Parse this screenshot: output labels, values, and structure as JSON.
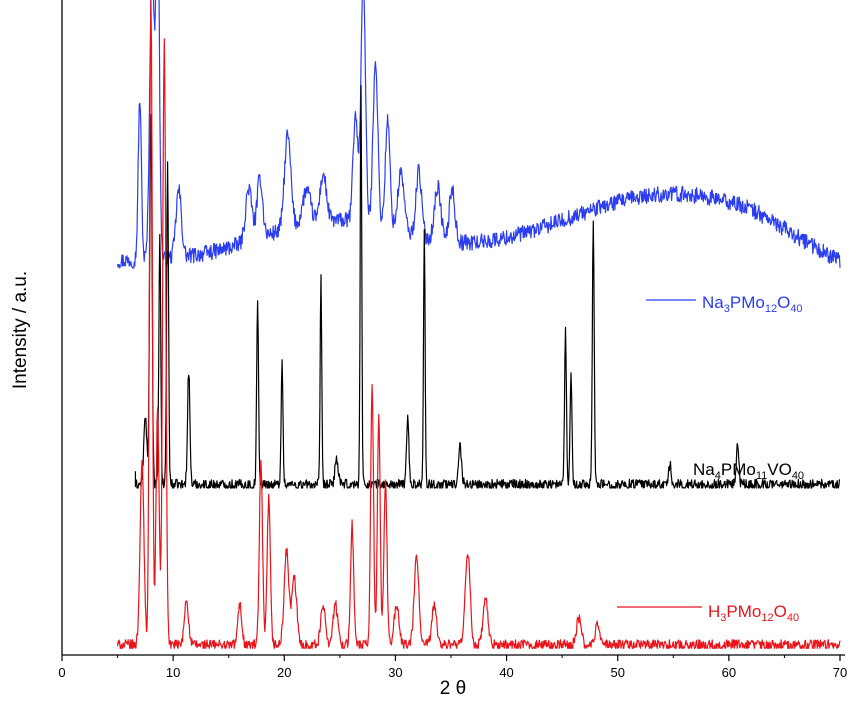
{
  "chart_data": {
    "type": "line",
    "title": "",
    "xlabel": "2 θ",
    "ylabel": "Intensity / a.u.",
    "xlim": [
      0,
      70
    ],
    "xticks": [
      "0",
      "10",
      "20",
      "30",
      "40",
      "50",
      "60",
      "70"
    ],
    "y_tick_labels": false,
    "grid": false,
    "legend_placement": "inline right, next to each trace",
    "series": [
      {
        "key": "blue",
        "name_parts": [
          [
            "Na",
            "n"
          ],
          [
            "3",
            "s"
          ],
          [
            "PMo",
            "n"
          ],
          [
            "12",
            "s"
          ],
          [
            "O",
            "n"
          ],
          [
            "40",
            "s"
          ]
        ],
        "color": "#2b3df0",
        "offset": 0.55,
        "baseline": 0.025,
        "noise": 0.012,
        "noise_start": 0.02,
        "humps": [
          [
            24.5,
            9,
            0.06
          ],
          [
            55,
            14,
            0.1
          ]
        ],
        "peaks": [
          [
            7.0,
            0.2,
            0.24
          ],
          [
            8.1,
            0.28,
            0.45
          ],
          [
            8.6,
            0.22,
            0.55
          ],
          [
            10.5,
            0.35,
            0.1
          ],
          [
            16.8,
            0.4,
            0.08
          ],
          [
            17.8,
            0.35,
            0.09
          ],
          [
            20.3,
            0.4,
            0.14
          ],
          [
            22.0,
            0.5,
            0.05
          ],
          [
            23.5,
            0.4,
            0.07
          ],
          [
            26.4,
            0.3,
            0.16
          ],
          [
            27.1,
            0.28,
            0.37
          ],
          [
            28.2,
            0.3,
            0.25
          ],
          [
            29.3,
            0.3,
            0.16
          ],
          [
            30.5,
            0.4,
            0.09
          ],
          [
            32.1,
            0.35,
            0.1
          ],
          [
            33.8,
            0.4,
            0.08
          ],
          [
            35.1,
            0.35,
            0.08
          ]
        ]
      },
      {
        "key": "black",
        "name_parts": [
          [
            "Na",
            "n"
          ],
          [
            "4",
            "s"
          ],
          [
            "PMo",
            "n"
          ],
          [
            "11",
            "s"
          ],
          [
            "VO",
            "n"
          ],
          [
            "40",
            "s"
          ]
        ],
        "color": "#000000",
        "offset": 0.24,
        "baseline": 0.0,
        "noise": 0.008,
        "noise_start": 6.9,
        "humps": [],
        "peaks": [
          [
            7.5,
            0.2,
            0.1
          ],
          [
            8.0,
            0.15,
            0.56
          ],
          [
            8.8,
            0.12,
            0.37
          ],
          [
            9.5,
            0.12,
            0.48
          ],
          [
            11.4,
            0.15,
            0.17
          ],
          [
            17.6,
            0.12,
            0.27
          ],
          [
            19.8,
            0.12,
            0.18
          ],
          [
            23.3,
            0.1,
            0.31
          ],
          [
            24.7,
            0.2,
            0.04
          ],
          [
            26.9,
            0.1,
            0.6
          ],
          [
            31.1,
            0.15,
            0.1
          ],
          [
            32.6,
            0.1,
            0.39
          ],
          [
            35.8,
            0.2,
            0.06
          ],
          [
            45.3,
            0.12,
            0.23
          ],
          [
            45.8,
            0.12,
            0.17
          ],
          [
            47.8,
            0.12,
            0.4
          ],
          [
            54.7,
            0.15,
            0.03
          ],
          [
            60.8,
            0.15,
            0.06
          ]
        ]
      },
      {
        "key": "red",
        "name_parts": [
          [
            "H",
            "n"
          ],
          [
            "3",
            "s"
          ],
          [
            "PMo",
            "n"
          ],
          [
            "12",
            "s"
          ],
          [
            "O",
            "n"
          ],
          [
            "40",
            "s"
          ]
        ],
        "color": "#e8141a",
        "offset": 0.0,
        "baseline": 0.0,
        "noise": 0.008,
        "noise_start": 5.0,
        "humps": [],
        "peaks": [
          [
            7.2,
            0.25,
            0.27
          ],
          [
            8.0,
            0.18,
            0.97
          ],
          [
            8.6,
            0.2,
            0.35
          ],
          [
            9.2,
            0.2,
            0.9
          ],
          [
            11.2,
            0.25,
            0.07
          ],
          [
            16.0,
            0.25,
            0.06
          ],
          [
            17.9,
            0.2,
            0.27
          ],
          [
            18.6,
            0.2,
            0.22
          ],
          [
            20.2,
            0.3,
            0.14
          ],
          [
            20.9,
            0.3,
            0.1
          ],
          [
            23.5,
            0.3,
            0.06
          ],
          [
            24.6,
            0.3,
            0.06
          ],
          [
            26.1,
            0.2,
            0.18
          ],
          [
            27.9,
            0.18,
            0.39
          ],
          [
            28.5,
            0.18,
            0.34
          ],
          [
            29.1,
            0.2,
            0.24
          ],
          [
            30.1,
            0.3,
            0.06
          ],
          [
            31.9,
            0.3,
            0.13
          ],
          [
            33.5,
            0.3,
            0.06
          ],
          [
            36.5,
            0.3,
            0.14
          ],
          [
            38.1,
            0.3,
            0.07
          ],
          [
            46.5,
            0.3,
            0.04
          ],
          [
            48.2,
            0.3,
            0.03
          ]
        ]
      }
    ]
  }
}
